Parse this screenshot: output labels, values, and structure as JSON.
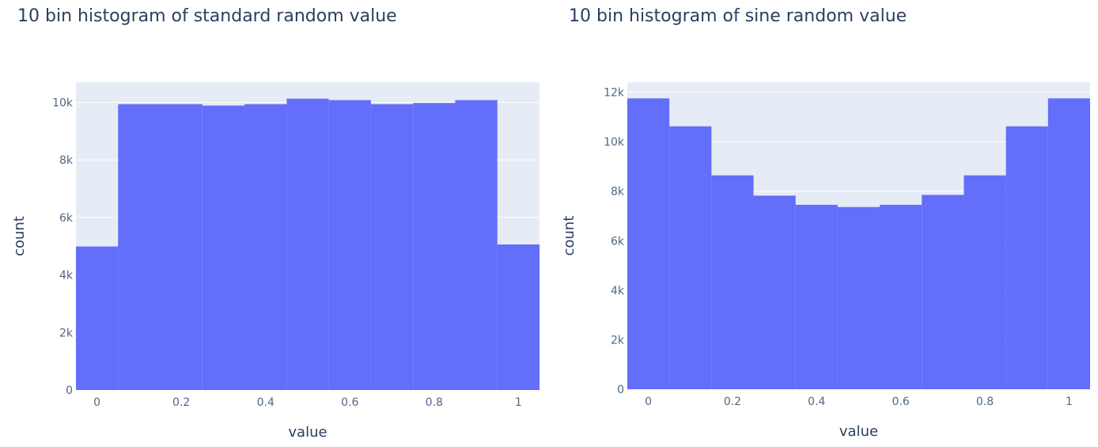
{
  "chart_data": [
    {
      "type": "bar",
      "title": "10 bin histogram of standard random value",
      "xlabel": "value",
      "ylabel": "count",
      "x_bin_centers": [
        0,
        0.1,
        0.2,
        0.3,
        0.4,
        0.5,
        0.6,
        0.7,
        0.8,
        0.9,
        1.0
      ],
      "values": [
        4990,
        9940,
        9940,
        9890,
        9940,
        10130,
        10080,
        9940,
        9980,
        10080,
        5060
      ],
      "xlim": [
        -0.05,
        1.05
      ],
      "ylim": [
        0,
        10700
      ],
      "x_ticks": [
        0,
        0.2,
        0.4,
        0.6,
        0.8,
        1
      ],
      "x_tick_labels": [
        "0",
        "0.2",
        "0.4",
        "0.6",
        "0.8",
        "1"
      ],
      "y_ticks": [
        0,
        2000,
        4000,
        6000,
        8000,
        10000
      ],
      "y_tick_labels": [
        "0",
        "2k",
        "4k",
        "6k",
        "8k",
        "10k"
      ],
      "bar_color": "#636efa",
      "plot_bg": "#e5ecf6",
      "grid": true
    },
    {
      "type": "bar",
      "title": "10 bin histogram of sine random value",
      "xlabel": "value",
      "ylabel": "count",
      "x_bin_centers": [
        0,
        0.1,
        0.2,
        0.3,
        0.4,
        0.5,
        0.6,
        0.7,
        0.8,
        0.9,
        1.0
      ],
      "values": [
        11750,
        10620,
        8640,
        7820,
        7450,
        7360,
        7450,
        7850,
        8640,
        10620,
        11750
      ],
      "xlim": [
        -0.05,
        1.05
      ],
      "ylim": [
        0,
        12400
      ],
      "x_ticks": [
        0,
        0.2,
        0.4,
        0.6,
        0.8,
        1
      ],
      "x_tick_labels": [
        "0",
        "0.2",
        "0.4",
        "0.6",
        "0.8",
        "1"
      ],
      "y_ticks": [
        0,
        2000,
        4000,
        6000,
        8000,
        10000,
        12000
      ],
      "y_tick_labels": [
        "0",
        "2k",
        "4k",
        "6k",
        "8k",
        "10k",
        "12k"
      ],
      "bar_color": "#636efa",
      "plot_bg": "#e5ecf6",
      "grid": true
    }
  ]
}
